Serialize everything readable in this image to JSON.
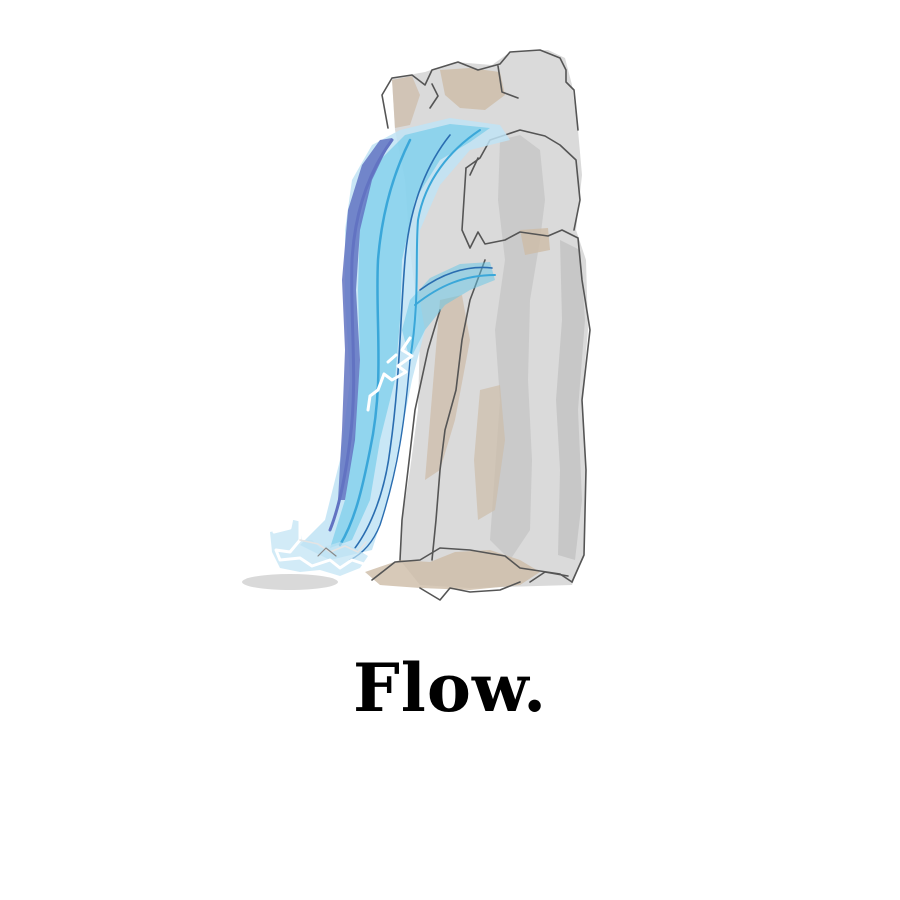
{
  "caption": {
    "text": "Flow."
  },
  "illustration": {
    "icon": "waterfall-sketch-icon",
    "colors": {
      "rock_fill": "#d6d6d6",
      "rock_shadow": "#c4c4c4",
      "rock_tan": "#cdbba6",
      "rock_outline": "#555555",
      "water_light": "#bfe3f4",
      "water_mid": "#62c6e8",
      "water_dark": "#6273c2",
      "water_line": "#2a6db0",
      "splash": "#ffffff"
    }
  }
}
